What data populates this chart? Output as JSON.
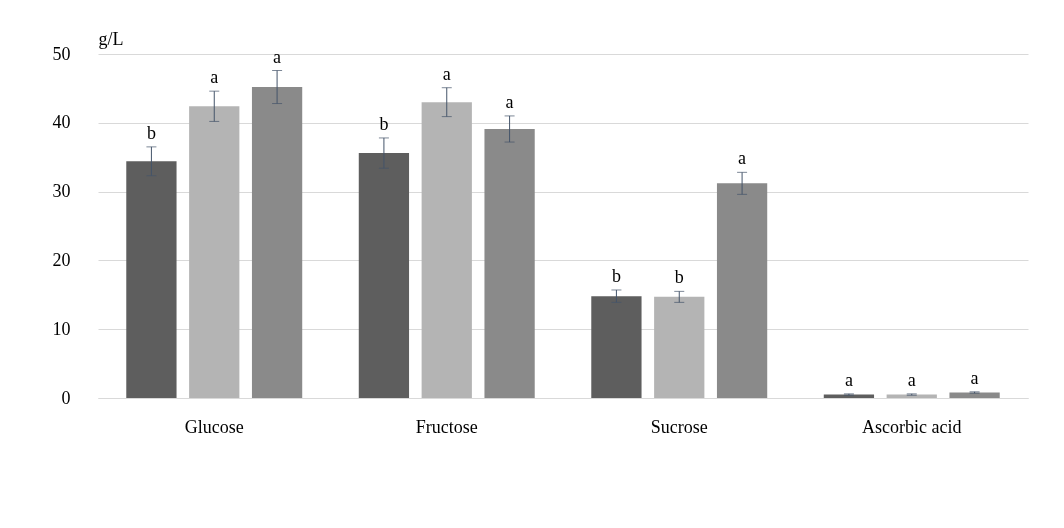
{
  "chart_data": {
    "type": "bar",
    "ylabel": "g/L",
    "categories": [
      "Glucose",
      "Fructose",
      "Sucrose",
      "Ascorbic acid"
    ],
    "series": [
      {
        "color": "#5e5e5e",
        "values": [
          34.4,
          35.6,
          14.8,
          0.5
        ],
        "errors": [
          2.1,
          2.2,
          0.9,
          0.1
        ],
        "value_labels": [
          "b",
          "b",
          "b",
          "a"
        ]
      },
      {
        "color": "#b4b4b4",
        "values": [
          42.4,
          43.0,
          14.7,
          0.5
        ],
        "errors": [
          2.2,
          2.1,
          0.8,
          0.1
        ],
        "value_labels": [
          "a",
          "a",
          "b",
          "a"
        ]
      },
      {
        "color": "#8a8a8a",
        "values": [
          45.2,
          39.1,
          31.2,
          0.8
        ],
        "errors": [
          2.4,
          1.9,
          1.6,
          0.1
        ],
        "value_labels": [
          "a",
          "a",
          "a",
          "a"
        ]
      }
    ],
    "ylim": [
      0,
      50
    ],
    "yticks": [
      0,
      10,
      20,
      30,
      40,
      50
    ],
    "grid": "y",
    "legend": false
  }
}
